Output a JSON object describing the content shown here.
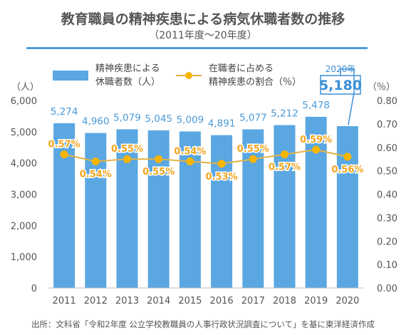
{
  "title": "教育職員の精神疾患による病気休職者数の推移",
  "subtitle": "（2011年度～20年度）",
  "source": "出所：文科省「令和2年度 公立学校教職員の人事行政状況調査について」を基に東洋経済作成",
  "colors": {
    "bar": "#5aa7e2",
    "line": "#f7b500",
    "line_stroke": "#e3b243",
    "rule": "#4a9fe0",
    "callout": "#3a8fd6"
  },
  "chart_data": {
    "type": "bar",
    "categories": [
      "2011",
      "2012",
      "2013",
      "2014",
      "2015",
      "2016",
      "2017",
      "2018",
      "2019",
      "2020"
    ],
    "series": [
      {
        "name": "精神疾患による休職者数（人）",
        "type": "bar",
        "axis": "left",
        "values": [
          5274,
          4960,
          5079,
          5045,
          5009,
          4891,
          5077,
          5212,
          5478,
          5180
        ],
        "labels": [
          "5,274",
          "4,960",
          "5,079",
          "5,045",
          "5,009",
          "4,891",
          "5,077",
          "5,212",
          "5,478",
          ""
        ]
      },
      {
        "name": "在職者に占める精神疾患の割合（％）",
        "type": "line",
        "axis": "right",
        "values": [
          0.57,
          0.54,
          0.55,
          0.55,
          0.54,
          0.53,
          0.55,
          0.57,
          0.59,
          0.56
        ],
        "labels": [
          "0.57%",
          "0.54%",
          "0.55%",
          "0.55%",
          "0.54%",
          "0.53%",
          "0.55%",
          "0.57%",
          "0.59%",
          "0.56%"
        ]
      }
    ],
    "legend": {
      "bar_lines": [
        "精神疾患による",
        "休職者数（人）"
      ],
      "line_lines": [
        "在職者に占める",
        "精神疾患の割合（％）"
      ]
    },
    "y_left": {
      "unit": "（人）",
      "min": 0,
      "max": 6000,
      "ticks": [
        0,
        1000,
        2000,
        3000,
        4000,
        5000,
        6000
      ],
      "tick_labels": [
        "0",
        "1,000",
        "2,000",
        "3,000",
        "4,000",
        "5,000",
        "6,000"
      ]
    },
    "y_right": {
      "unit": "（％）",
      "min": 0,
      "max": 0.8,
      "ticks": [
        0,
        0.1,
        0.2,
        0.3,
        0.4,
        0.5,
        0.6,
        0.7,
        0.8
      ],
      "tick_labels": [
        "0.00",
        "0.10",
        "0.20",
        "0.30",
        "0.40",
        "0.50",
        "0.60",
        "0.70",
        "0.80"
      ]
    },
    "callout": {
      "year": "2020年",
      "value": "5,180"
    },
    "grid": false,
    "legend_position": "top"
  }
}
